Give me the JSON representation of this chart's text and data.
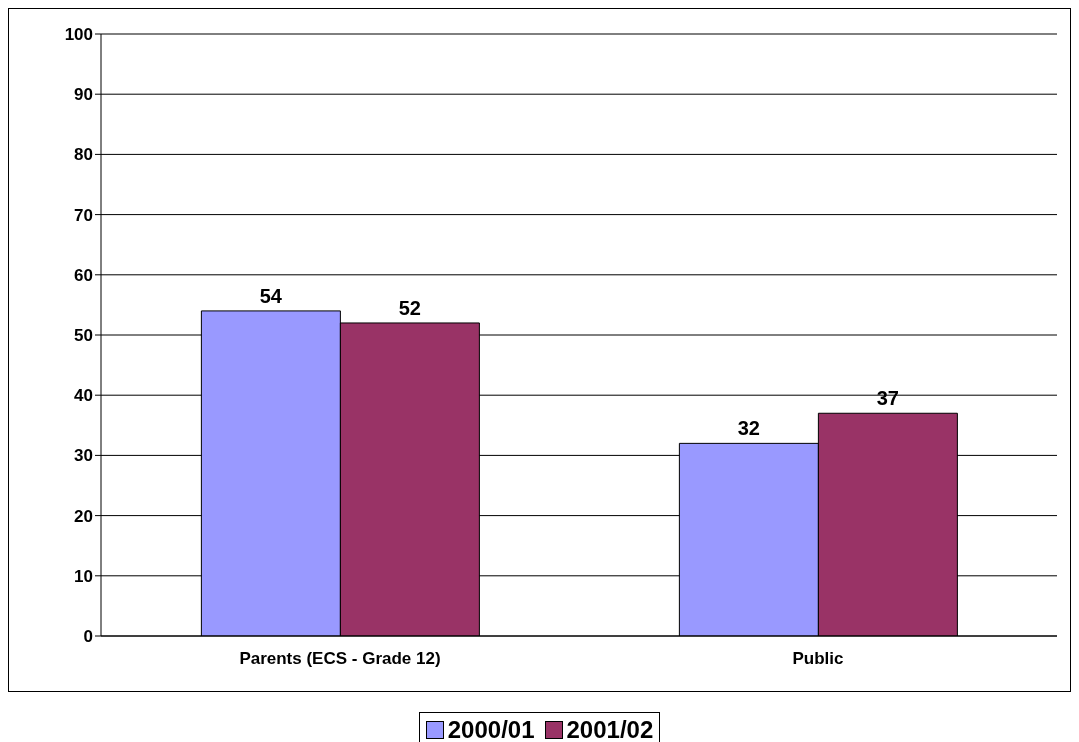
{
  "chart_data": {
    "type": "bar",
    "categories": [
      "Parents (ECS - Grade 12)",
      "Public"
    ],
    "series": [
      {
        "name": "2000/01",
        "color": "#9999ff",
        "values": [
          54,
          32
        ]
      },
      {
        "name": "2001/02",
        "color": "#993366",
        "values": [
          52,
          37
        ]
      }
    ],
    "ylim": [
      0,
      100
    ],
    "yticks": [
      0,
      10,
      20,
      30,
      40,
      50,
      60,
      70,
      80,
      90,
      100
    ],
    "grid": "y",
    "data_labels": true,
    "legend": "bottom"
  }
}
